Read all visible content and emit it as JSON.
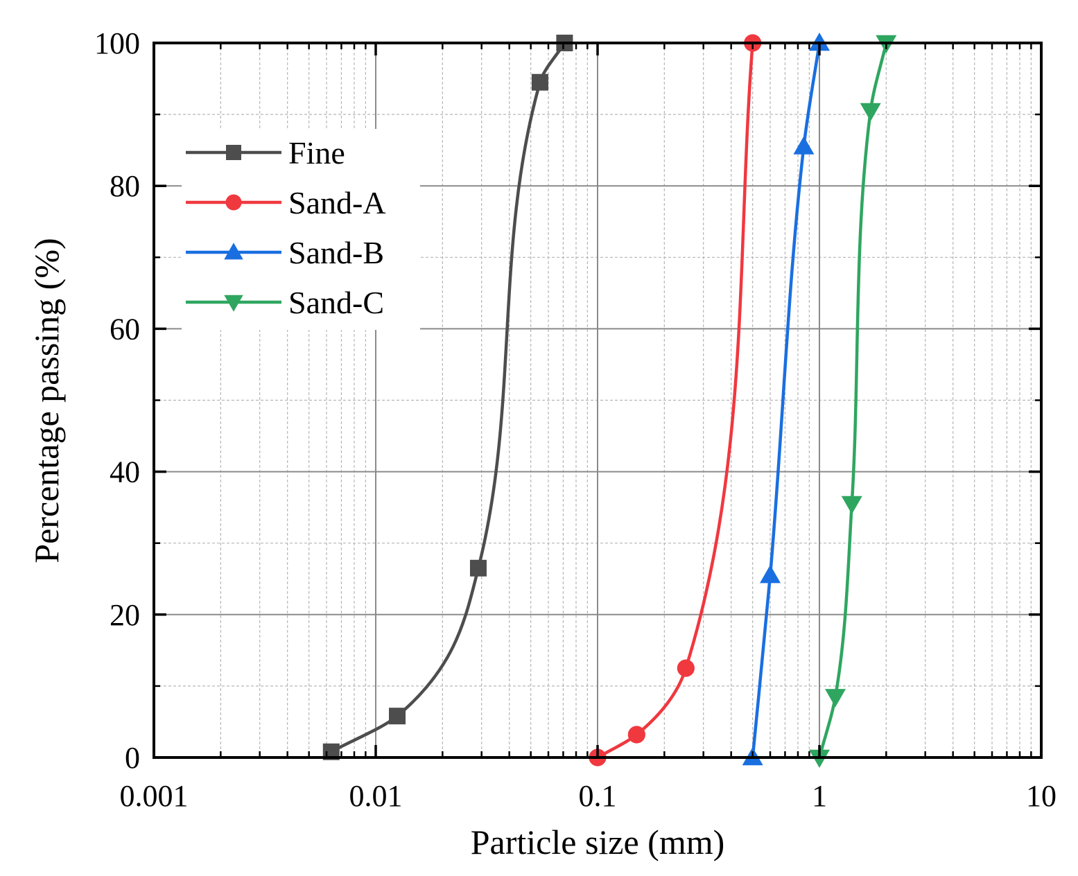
{
  "chart_data": {
    "type": "line",
    "title": "",
    "xlabel": "Particle size (mm)",
    "ylabel": "Percentage passing (%)",
    "xscale": "log",
    "xlim": [
      0.001,
      10
    ],
    "ylim": [
      0,
      100
    ],
    "grid": true,
    "legend_position": "top-left",
    "x_ticks": [
      {
        "value": 0.001,
        "label": "0.001"
      },
      {
        "value": 0.01,
        "label": "0.01"
      },
      {
        "value": 0.1,
        "label": "0.1"
      },
      {
        "value": 1,
        "label": "1"
      },
      {
        "value": 10,
        "label": "10"
      }
    ],
    "y_ticks": [
      {
        "value": 0,
        "label": "0"
      },
      {
        "value": 20,
        "label": "20"
      },
      {
        "value": 40,
        "label": "40"
      },
      {
        "value": 60,
        "label": "60"
      },
      {
        "value": 80,
        "label": "80"
      },
      {
        "value": 100,
        "label": "100"
      }
    ],
    "series": [
      {
        "name": "Fine",
        "color": "#4d4d4d",
        "marker": "square",
        "x": [
          0.0063,
          0.0125,
          0.029,
          0.055,
          0.071
        ],
        "y": [
          0.8,
          5.8,
          26.5,
          94.5,
          100
        ]
      },
      {
        "name": "Sand-A",
        "color": "#f0383f",
        "marker": "circle",
        "x": [
          0.1,
          0.15,
          0.25,
          0.5
        ],
        "y": [
          0,
          3.2,
          12.5,
          100
        ]
      },
      {
        "name": "Sand-B",
        "color": "#1a6fe0",
        "marker": "triangle-up",
        "x": [
          0.5,
          0.6,
          0.85,
          1.0
        ],
        "y": [
          0,
          25.5,
          85.5,
          100
        ]
      },
      {
        "name": "Sand-C",
        "color": "#2fa660",
        "marker": "triangle-down",
        "x": [
          1.0,
          1.18,
          1.4,
          1.7,
          2.0
        ],
        "y": [
          0,
          8.5,
          35.5,
          90.5,
          100
        ]
      }
    ]
  }
}
